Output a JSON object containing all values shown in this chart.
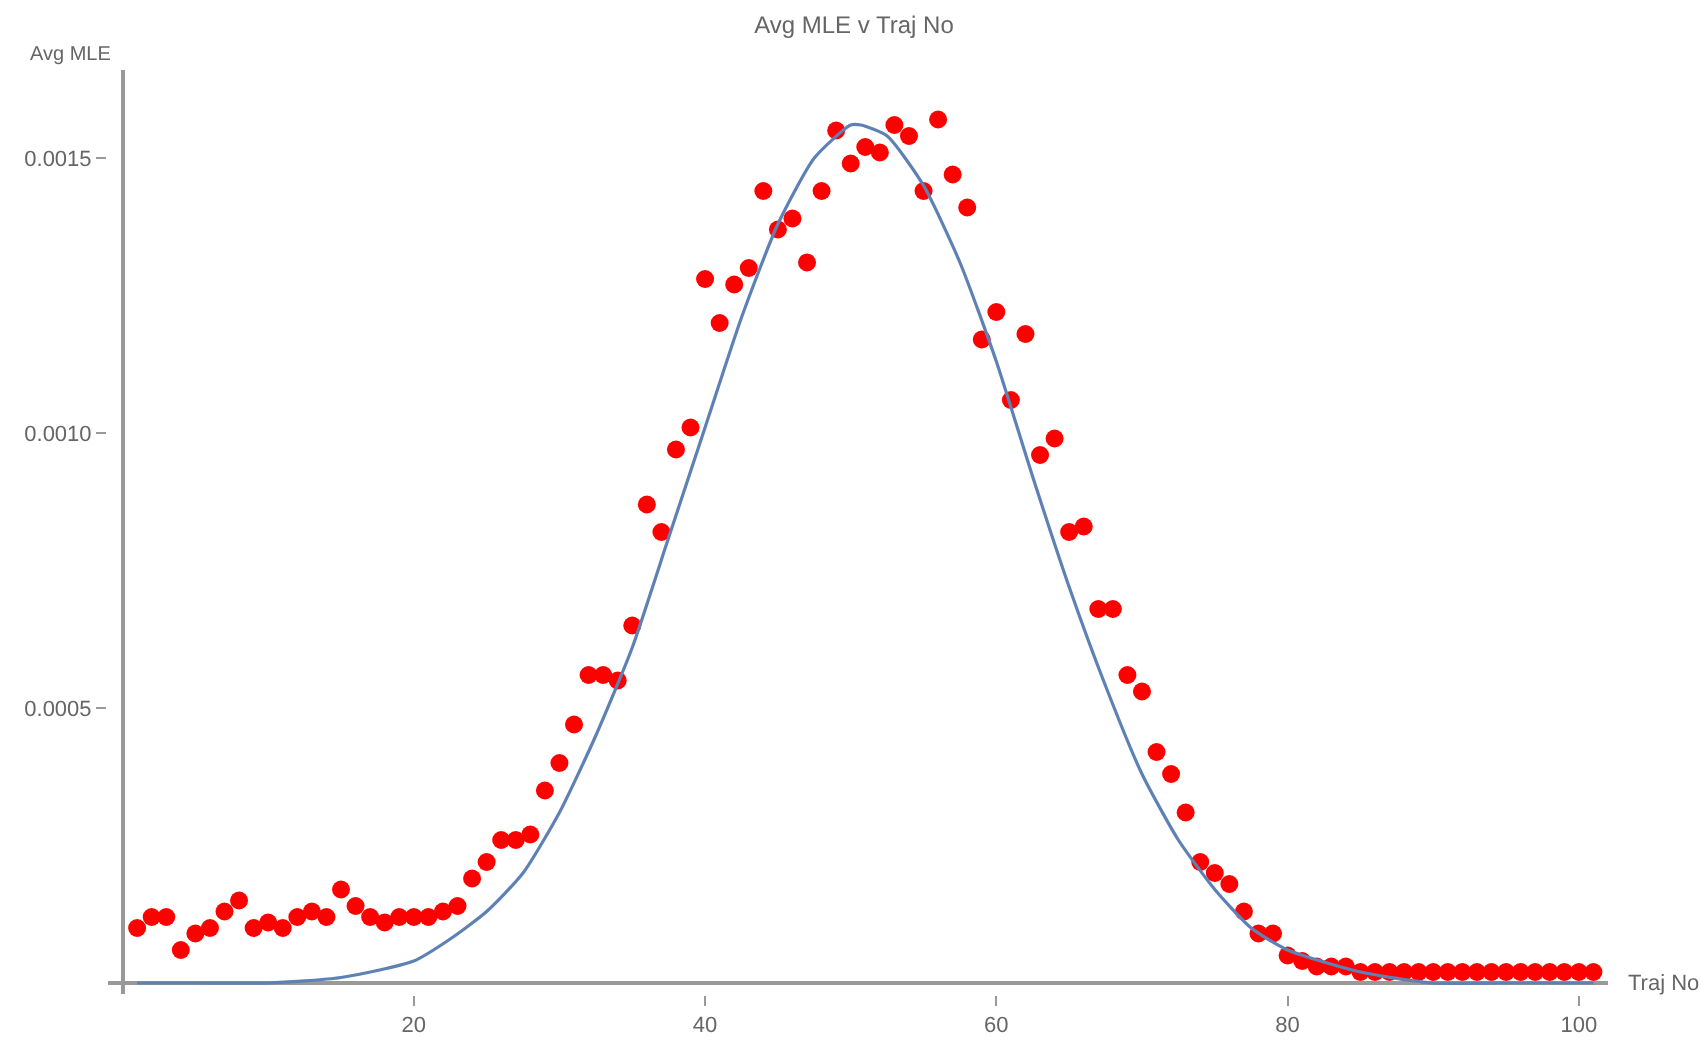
{
  "chart_data": {
    "type": "scatter",
    "title": "Avg MLE v Traj No",
    "xlabel": "Traj No",
    "ylabel": "Avg MLE",
    "xlim": [
      -1,
      102
    ],
    "ylim": [
      -2e-05,
      0.00166
    ],
    "xticks": [
      20,
      40,
      60,
      80,
      100
    ],
    "yticks": [
      {
        "value": 0.0005,
        "label": "0.0005"
      },
      {
        "value": 0.001,
        "label": "0.0010"
      },
      {
        "value": 0.0015,
        "label": "0.0015"
      }
    ],
    "marker": "circle",
    "series": [
      {
        "color": "#ff0000",
        "x": [
          1,
          2,
          3,
          4,
          5,
          6,
          7,
          8,
          9,
          10,
          11,
          12,
          13,
          14,
          15,
          16,
          17,
          18,
          19,
          20,
          21,
          22,
          23,
          24,
          25,
          26,
          27,
          28,
          29,
          30,
          31,
          32,
          33,
          34,
          35,
          36,
          37,
          38,
          39,
          40,
          41,
          42,
          43,
          44,
          45,
          46,
          47,
          48,
          49,
          50,
          51,
          52,
          53,
          54,
          55,
          56,
          57,
          58,
          59,
          60,
          61,
          62,
          63,
          64,
          65,
          66,
          67,
          68,
          69,
          70,
          71,
          72,
          73,
          74,
          75,
          76,
          77,
          78,
          79,
          80,
          81,
          82,
          83,
          84,
          85,
          86,
          87,
          88,
          89,
          90,
          91,
          92,
          93,
          94,
          95,
          96,
          97,
          98,
          99,
          100,
          101
        ],
        "values": [
          0.0001,
          0.00012,
          0.00012,
          6e-05,
          9e-05,
          0.0001,
          0.00013,
          0.00015,
          0.0001,
          0.00011,
          0.0001,
          0.00012,
          0.00013,
          0.00012,
          0.00017,
          0.00014,
          0.00012,
          0.00011,
          0.00012,
          0.00012,
          0.00012,
          0.00013,
          0.00014,
          0.00019,
          0.00022,
          0.00026,
          0.00026,
          0.00027,
          0.00035,
          0.0004,
          0.00047,
          0.00056,
          0.00056,
          0.00055,
          0.00065,
          0.00087,
          0.00082,
          0.00097,
          0.00101,
          0.00128,
          0.0012,
          0.00127,
          0.0013,
          0.00144,
          0.00137,
          0.00139,
          0.00131,
          0.00144,
          0.00155,
          0.00149,
          0.00152,
          0.00151,
          0.00156,
          0.00154,
          0.00144,
          0.00157,
          0.00147,
          0.00141,
          0.00117,
          0.00122,
          0.00106,
          0.00118,
          0.00096,
          0.00099,
          0.00082,
          0.00083,
          0.00068,
          0.00068,
          0.00056,
          0.00053,
          0.00042,
          0.00038,
          0.00031,
          0.00022,
          0.0002,
          0.00018,
          0.00013,
          9e-05,
          9e-05,
          5e-05,
          4e-05,
          3e-05,
          3e-05,
          3e-05,
          2e-05,
          2e-05,
          2e-05,
          2e-05,
          2e-05,
          2e-05,
          2e-05,
          2e-05,
          2e-05,
          2e-05,
          2e-05,
          2e-05,
          2e-05,
          2e-05,
          2e-05,
          2e-05,
          2e-05
        ]
      },
      {
        "type": "line",
        "color": "#5e81b5",
        "marker": "none",
        "line_style": "solid",
        "x": [
          1,
          5,
          10,
          15,
          20,
          22.5,
          25,
          27.5,
          30,
          32.5,
          35,
          37.5,
          40,
          42.5,
          45,
          47.5,
          50,
          50.7,
          52.5,
          55,
          57.5,
          60,
          62.5,
          65,
          67.5,
          70,
          72.5,
          75,
          77.5,
          80,
          85,
          90,
          95,
          101
        ],
        "values": [
          0,
          0,
          0,
          1e-05,
          4e-05,
          8e-05,
          0.00013,
          0.0002,
          0.00031,
          0.00045,
          0.00061,
          0.00081,
          0.00101,
          0.00121,
          0.00138,
          0.0015,
          0.00156,
          0.00156,
          0.00154,
          0.00145,
          0.00131,
          0.00113,
          0.00092,
          0.00072,
          0.00054,
          0.00038,
          0.00026,
          0.00017,
          0.0001,
          6e-05,
          2e-05,
          0,
          0,
          0
        ]
      }
    ]
  }
}
